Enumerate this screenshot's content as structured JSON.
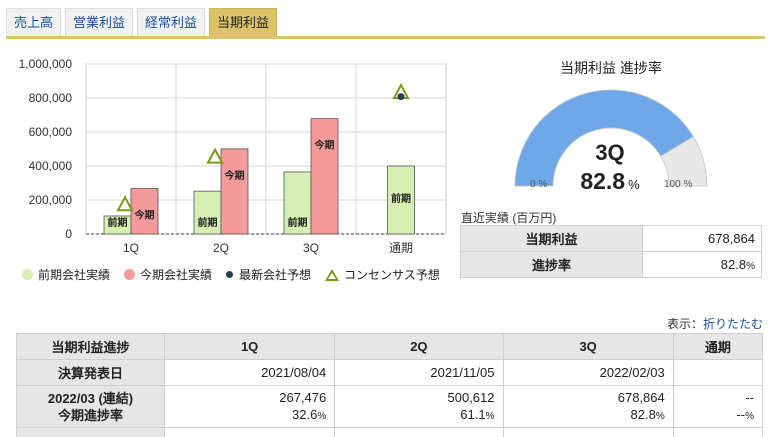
{
  "tabs": [
    {
      "label": "売上高",
      "active": false
    },
    {
      "label": "営業利益",
      "active": false
    },
    {
      "label": "経常利益",
      "active": false
    },
    {
      "label": "当期利益",
      "active": true
    }
  ],
  "chart_data": {
    "type": "bar",
    "categories": [
      "1Q",
      "2Q",
      "3Q",
      "通期"
    ],
    "ylim": [
      0,
      1000000
    ],
    "yticks": [
      0,
      200000,
      400000,
      600000,
      800000,
      1000000
    ],
    "ytick_labels": [
      "0",
      "200,000",
      "400,000",
      "600,000",
      "800,000",
      "1,000,000"
    ],
    "series": [
      {
        "name": "前期会社実績",
        "bar_label": "前期",
        "color": "#d6efb2",
        "values": [
          106000,
          252000,
          365000,
          400000
        ]
      },
      {
        "name": "今期会社実績",
        "bar_label": "今期",
        "color": "#f59a9a",
        "values": [
          267476,
          500612,
          678864,
          null
        ]
      }
    ],
    "forecast": {
      "name": "最新会社予想",
      "color": "#27405a",
      "values": [
        null,
        null,
        null,
        820000
      ]
    },
    "consensus": {
      "name": "コンセンサス予想",
      "color": "#7a9b10",
      "values": [
        175000,
        455000,
        null,
        835000
      ]
    }
  },
  "gauge": {
    "title": "当期利益 進捗率",
    "quarter": "3Q",
    "value": 82.8,
    "value_text": "82.8",
    "unit": "%",
    "min_label": "0 %",
    "max_label": "100 %",
    "fill_color": "#6ea8e8",
    "track_color": "#e8e8e8"
  },
  "recent": {
    "label": "直近実績 (百万円)",
    "rows": [
      {
        "label": "当期利益",
        "value": "678,864",
        "unit": ""
      },
      {
        "label": "進捗率",
        "value": "82.8",
        "unit": "%"
      }
    ]
  },
  "display_toggle": {
    "prefix": "表示：",
    "link": "折りたたむ"
  },
  "progress_table": {
    "headers": [
      "当期利益進捗",
      "1Q",
      "2Q",
      "3Q",
      "通期"
    ],
    "announce_label": "決算発表日",
    "announce_dates": [
      "2021/08/04",
      "2021/11/05",
      "2022/02/03",
      ""
    ],
    "period_label_1": "2022/03 (連結)",
    "period_label_2": "今期進捗率",
    "values": [
      "267,476",
      "500,612",
      "678,864",
      "--"
    ],
    "rates": [
      "32.6",
      "61.1",
      "82.8",
      "--"
    ],
    "rate_unit": "%"
  }
}
